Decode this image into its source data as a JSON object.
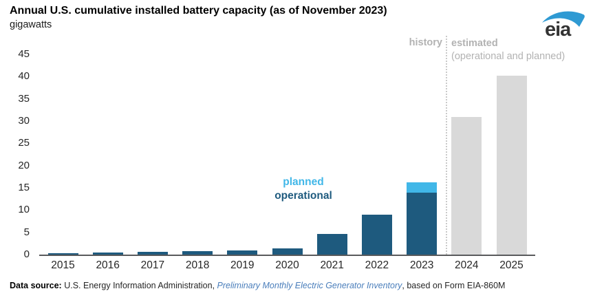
{
  "header": {
    "title": "Annual U.S. cumulative installed battery capacity (as of November 2023)",
    "units_label": "gigawatts",
    "logo_text": "eia"
  },
  "chart_data": {
    "type": "bar",
    "stacked": true,
    "grid": false,
    "title": "Annual U.S. cumulative installed battery capacity (as of November 2023)",
    "ylabel": "gigawatts",
    "xlabel": "",
    "categories": [
      "2015",
      "2016",
      "2017",
      "2018",
      "2019",
      "2020",
      "2021",
      "2022",
      "2023",
      "2024",
      "2025"
    ],
    "series": [
      {
        "name": "operational",
        "color": "#1e5a7e",
        "values": [
          0.3,
          0.4,
          0.55,
          0.75,
          0.95,
          1.4,
          4.7,
          8.9,
          13.9,
          0,
          0
        ]
      },
      {
        "name": "planned",
        "color": "#41b7e8",
        "values": [
          0,
          0,
          0,
          0,
          0,
          0,
          0,
          0,
          2.4,
          0,
          0
        ]
      },
      {
        "name": "estimated",
        "color": "#d9d9d9",
        "values": [
          0,
          0,
          0,
          0,
          0,
          0,
          0,
          0,
          0,
          30.9,
          40.2
        ]
      }
    ],
    "ylim": [
      0,
      45
    ],
    "yticks": [
      0,
      5,
      10,
      15,
      20,
      25,
      30,
      35,
      40,
      45
    ],
    "legend_position": "inline-annotation",
    "annotations": {
      "history_label": "history",
      "estimated_label": "estimated",
      "estimated_sublabel": "(operational and planned)",
      "planned_label": "planned",
      "operational_label": "operational",
      "divider_between": [
        "2023",
        "2024"
      ]
    }
  },
  "footer": {
    "prefix_bold": "Data source: ",
    "source_text": "U.S. Energy Information Administration, ",
    "link_text": "Preliminary Monthly Electric Generator Inventory",
    "suffix_text": ", based on Form EIA-860M"
  },
  "colors": {
    "operational": "#1e5a7e",
    "planned": "#41b7e8",
    "estimated": "#d9d9d9",
    "axis_line": "#58595b",
    "muted_text": "#b2b2b2",
    "link_blue": "#4a7ebb",
    "logo_swoosh": "#2f9ad3",
    "logo_text": "#333333"
  }
}
